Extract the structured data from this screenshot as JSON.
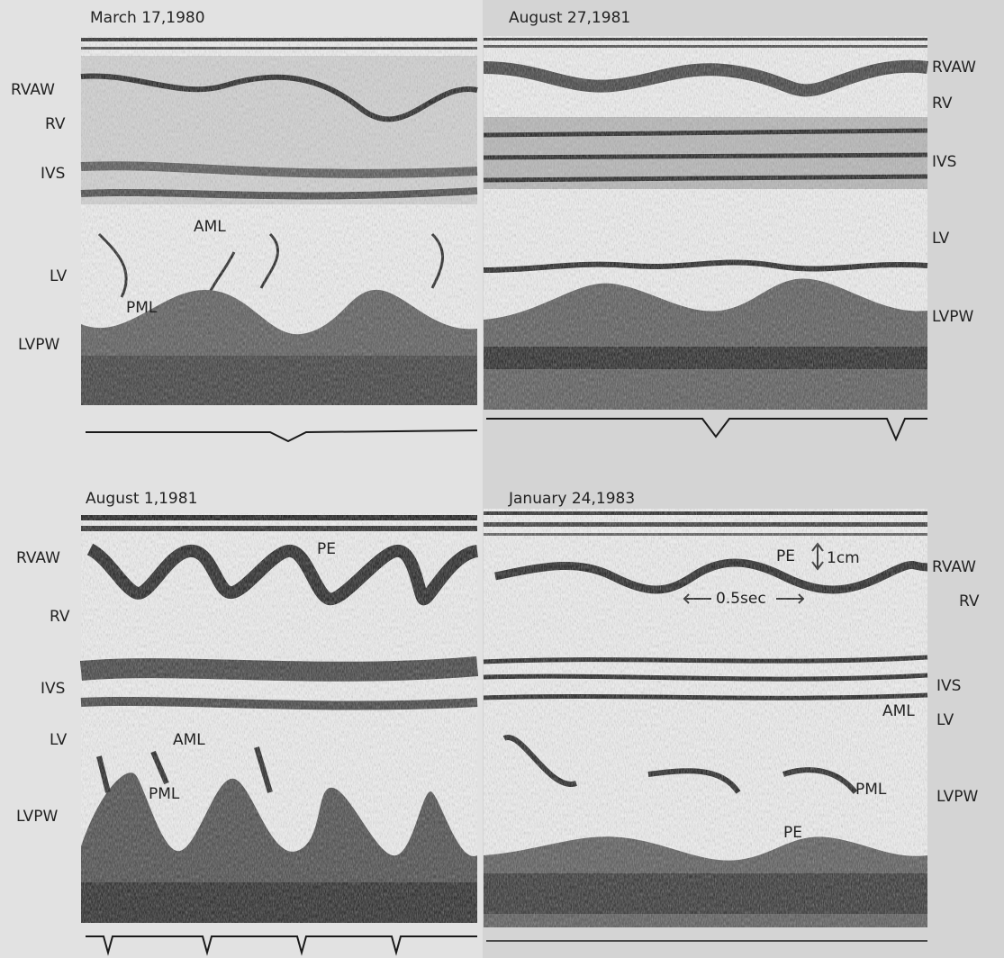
{
  "panels": [
    {
      "date": "March 17,1980",
      "labels": [
        "RVAW",
        "RV",
        "IVS",
        "LV",
        "LVPW"
      ],
      "annotations": [
        "AML",
        "PML"
      ]
    },
    {
      "date": "August 27,1981",
      "labels": [
        "RVAW",
        "RV",
        "IVS",
        "LV",
        "LVPW"
      ],
      "annotations": []
    },
    {
      "date": "August 1,1981",
      "labels": [
        "RVAW",
        "RV",
        "IVS",
        "LV",
        "LVPW"
      ],
      "annotations": [
        "PE",
        "AML",
        "PML"
      ]
    },
    {
      "date": "January 24,1983",
      "labels": [
        "RVAW",
        "RV",
        "IVS",
        "LV",
        "LVPW"
      ],
      "annotations": [
        "PE",
        "1cm",
        "0.5sec",
        "AML",
        "PML",
        "PE"
      ]
    }
  ]
}
